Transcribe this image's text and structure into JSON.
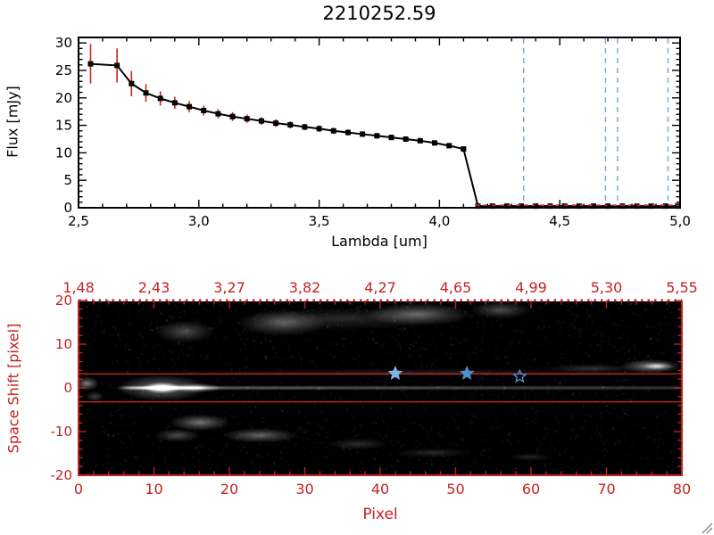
{
  "chart_data": [
    {
      "type": "line",
      "title": "2210252.59",
      "xlabel": "Lambda [um]",
      "ylabel": "Flux [mJy]",
      "xlim": [
        2.5,
        5.0
      ],
      "ylim": [
        0,
        31
      ],
      "grid": false,
      "legend": "none",
      "xticks": {
        "values": [
          2.5,
          3.0,
          3.5,
          4.0,
          4.5,
          5.0
        ],
        "labels": [
          "2,5",
          "3,0",
          "3,5",
          "4,0",
          "4,5",
          "5,0"
        ]
      },
      "yticks": {
        "values": [
          0,
          5,
          10,
          15,
          20,
          25,
          30
        ],
        "labels": [
          "0",
          "5",
          "10",
          "15",
          "20",
          "25",
          "30"
        ]
      },
      "x": [
        2.55,
        2.66,
        2.72,
        2.78,
        2.84,
        2.9,
        2.96,
        3.02,
        3.08,
        3.14,
        3.2,
        3.26,
        3.32,
        3.38,
        3.44,
        3.5,
        3.56,
        3.62,
        3.68,
        3.74,
        3.8,
        3.86,
        3.92,
        3.98,
        4.04,
        4.1,
        4.16,
        4.22,
        4.28,
        4.34,
        4.4,
        4.46,
        4.52,
        4.58,
        4.64,
        4.7,
        4.76,
        4.82,
        4.88,
        4.94,
        4.99
      ],
      "y": [
        26.2,
        25.9,
        22.6,
        20.9,
        19.9,
        19.1,
        18.4,
        17.7,
        17.1,
        16.6,
        16.2,
        15.8,
        15.4,
        15.1,
        14.7,
        14.4,
        14.0,
        13.7,
        13.4,
        13.1,
        12.8,
        12.5,
        12.2,
        11.8,
        11.3,
        10.7,
        0.3,
        0.3,
        0.3,
        0.3,
        0.3,
        0.3,
        0.3,
        0.3,
        0.3,
        0.3,
        0.3,
        0.3,
        0.3,
        0.3,
        0.3
      ],
      "yerr": [
        3.6,
        3.1,
        2.3,
        1.6,
        1.3,
        1.1,
        1.0,
        0.9,
        0.85,
        0.8,
        0.75,
        0.7,
        0.7,
        0.65,
        0.6,
        0.6,
        0.55,
        0.55,
        0.5,
        0.5,
        0.5,
        0.45,
        0.45,
        0.4,
        0.4,
        0.45,
        0.35,
        0.35,
        0.35,
        0.35,
        0.35,
        0.35,
        0.35,
        0.35,
        0.35,
        0.35,
        0.35,
        0.35,
        0.35,
        0.35,
        0.35
      ],
      "marker": "filled-square",
      "line_color": "#000000",
      "marker_color": "#000000",
      "error_color": "#cc2222",
      "vlines": {
        "x": [
          4.35,
          4.69,
          4.74,
          4.95
        ],
        "style": "dashed",
        "color": "#88a8d8"
      },
      "hline": {
        "y": 0.45,
        "from": 4.15,
        "to": 5.0,
        "style": "dashed",
        "color": "#cc2222"
      }
    },
    {
      "type": "heatmap",
      "description": "2D grayscale spectral image with bright horizontal trace at space shift 0, brightest around pixel 10, diffuse emission above (+13 to +18) and below (-8 to -16), bright knot near pixel 76 at +5",
      "xlabel": "Pixel",
      "ylabel": "Space Shift [pixel]",
      "xlim": [
        0,
        80
      ],
      "ylim": [
        -20,
        20
      ],
      "axis_color": "#c32222",
      "top_axis": {
        "values": [
          0,
          10,
          20,
          30,
          40,
          50,
          60,
          70,
          80
        ],
        "labels": [
          "1,48",
          "2,43",
          "3,27",
          "3,82",
          "4,27",
          "4,65",
          "4,99",
          "5,30",
          "5,55"
        ]
      },
      "xticks": {
        "values": [
          0,
          10,
          20,
          30,
          40,
          50,
          60,
          70,
          80
        ],
        "labels": [
          "0",
          "10",
          "20",
          "30",
          "40",
          "50",
          "60",
          "70",
          "80"
        ]
      },
      "yticks": {
        "values": [
          20,
          10,
          0,
          -10,
          -20
        ],
        "labels": [
          "20",
          "10",
          "0",
          "-10",
          "-20"
        ]
      },
      "guide_lines_y": [
        3.2,
        -3.2
      ],
      "star_color": "#4d8fd1",
      "star_color_light": "#7fb2e5",
      "stars": [
        {
          "x": 42.0,
          "y": 3.3,
          "filled": true,
          "light": true
        },
        {
          "x": 51.5,
          "y": 3.3,
          "filled": true,
          "light": false
        },
        {
          "x": 58.5,
          "y": 2.6,
          "filled": false,
          "light": false
        }
      ],
      "trace": {
        "x_from": 6,
        "x_to": 80,
        "y": 0,
        "base_start": 0.55,
        "base_end": 0.29,
        "peak_x": 11,
        "peak_amp": 0.75,
        "peak_sigma": 3,
        "rx": 1.4,
        "ry": 0.6,
        "scale": 0.28
      },
      "blobs": [
        [
          11,
          0,
          6,
          3,
          0.5
        ],
        [
          11,
          0,
          2.5,
          1.3,
          0.95
        ],
        [
          15.5,
          0,
          3.5,
          1.1,
          0.6
        ],
        [
          14,
          13,
          4,
          2.6,
          0.3
        ],
        [
          27,
          15,
          6,
          3,
          0.36
        ],
        [
          45,
          17,
          7,
          2.6,
          0.42
        ],
        [
          56,
          18,
          4,
          2,
          0.3
        ],
        [
          35,
          16,
          12,
          2.6,
          0.16
        ],
        [
          45,
          3.5,
          35,
          0.9,
          0.12
        ],
        [
          68,
          4.5,
          6,
          1,
          0.2
        ],
        [
          76,
          5,
          4,
          1.6,
          0.55
        ],
        [
          77,
          5,
          2,
          0.9,
          0.5
        ],
        [
          16,
          -8,
          4,
          1.9,
          0.45
        ],
        [
          24,
          -11,
          5,
          1.7,
          0.4
        ],
        [
          13,
          -11,
          3,
          1.5,
          0.3
        ],
        [
          37,
          -13,
          4,
          1.3,
          0.18
        ],
        [
          47,
          -15,
          5,
          1.1,
          0.16
        ],
        [
          60,
          -16,
          3,
          0.9,
          0.14
        ],
        [
          1,
          1,
          1.6,
          1.6,
          0.5
        ],
        [
          2,
          -2,
          1.2,
          1.2,
          0.25
        ]
      ],
      "dark_pixel": {
        "x": 41.2,
        "y": 1.4,
        "w": 3.5,
        "h": 5
      },
      "noise": {
        "seed": 7,
        "count": 3000,
        "alpha": 0.07,
        "bright_count": 250,
        "bright_alpha": 0.16
      }
    }
  ]
}
